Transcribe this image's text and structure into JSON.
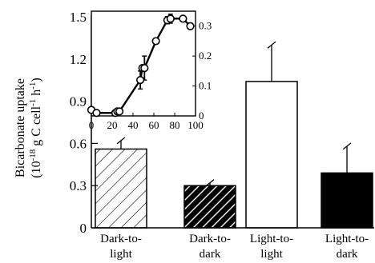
{
  "chart_data": [
    {
      "type": "bar",
      "ylabel_line1": "Bicarbonate uptake",
      "ylabel_line2_prefix": "(10",
      "ylabel_line2_exp1": "-18",
      "ylabel_line2_mid": " g C cell",
      "ylabel_line2_exp2": "-1",
      "ylabel_line2_mid2": " h",
      "ylabel_line2_exp3": "-1",
      "ylabel_line2_suffix": ")",
      "ylim": [
        0,
        1.5
      ],
      "yticks": [
        "0",
        "0.3",
        "0.6",
        "0.9",
        "1.2",
        "1.5"
      ],
      "categories": [
        {
          "line1": "Dark-to-",
          "line2": "light"
        },
        {
          "line1": "Dark-to-",
          "line2": "dark"
        },
        {
          "line1": "Light-to-",
          "line2": "light"
        },
        {
          "line1": "Light-to-",
          "line2": "dark"
        }
      ],
      "values": [
        0.56,
        0.3,
        1.04,
        0.39
      ],
      "errors": [
        0.06,
        0.02,
        0.26,
        0.19
      ],
      "fills": [
        "hatched-light",
        "hatched-dark",
        "white",
        "black"
      ]
    },
    {
      "type": "line",
      "xlim": [
        0,
        100
      ],
      "ylim": [
        0,
        0.35
      ],
      "xticks": [
        "0",
        "20",
        "40",
        "60",
        "80",
        "100"
      ],
      "yticks": [
        "0",
        "0.1",
        "0.2",
        "0.3"
      ],
      "x": [
        0,
        5,
        23,
        25,
        27,
        47,
        49,
        51,
        62,
        73,
        76,
        88,
        95
      ],
      "y": [
        0.02,
        0.01,
        0.01,
        0.015,
        0.015,
        0.12,
        0.16,
        0.16,
        0.25,
        0.32,
        0.325,
        0.325,
        0.3
      ],
      "errors": [
        0,
        0,
        0,
        0,
        0,
        0.03,
        0,
        0.04,
        0,
        0.012,
        0.015,
        0,
        0.01
      ]
    }
  ]
}
